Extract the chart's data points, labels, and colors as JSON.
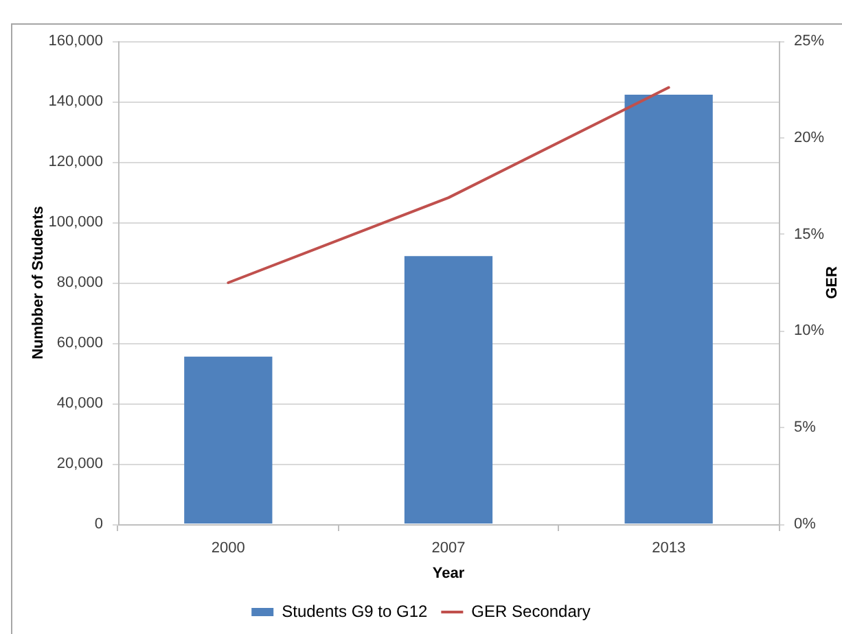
{
  "chart_data": {
    "type": "bar",
    "xlabel": "Year",
    "ylabel": "Numbber of Students",
    "y2label": "GER",
    "categories": [
      "2000",
      "2007",
      "2013"
    ],
    "series": [
      {
        "name": "Students G9 to G12",
        "color": "#4f81bd",
        "values": [
          55500,
          88800,
          142300
        ]
      },
      {
        "name": "GER Secondary",
        "type": "line",
        "axis": "y2",
        "color": "#c0504d",
        "values": [
          12.5,
          16.9,
          22.6
        ]
      }
    ],
    "ylim": [
      0,
      160000
    ],
    "yticks": [
      {
        "value": 0,
        "label": "0"
      },
      {
        "value": 20000,
        "label": "20,000"
      },
      {
        "value": 40000,
        "label": "40,000"
      },
      {
        "value": 60000,
        "label": "60,000"
      },
      {
        "value": 80000,
        "label": "80,000"
      },
      {
        "value": 100000,
        "label": "100,000"
      },
      {
        "value": 120000,
        "label": "120,000"
      },
      {
        "value": 140000,
        "label": "140,000"
      },
      {
        "value": 160000,
        "label": "160,000"
      }
    ],
    "y2lim": [
      0,
      25
    ],
    "y2ticks": [
      {
        "value": 0,
        "label": "0%"
      },
      {
        "value": 5,
        "label": "5%"
      },
      {
        "value": 10,
        "label": "10%"
      },
      {
        "value": 15,
        "label": "15%"
      },
      {
        "value": 20,
        "label": "20%"
      },
      {
        "value": 25,
        "label": "25%"
      }
    ],
    "grid": "y",
    "legend": "bottom"
  }
}
